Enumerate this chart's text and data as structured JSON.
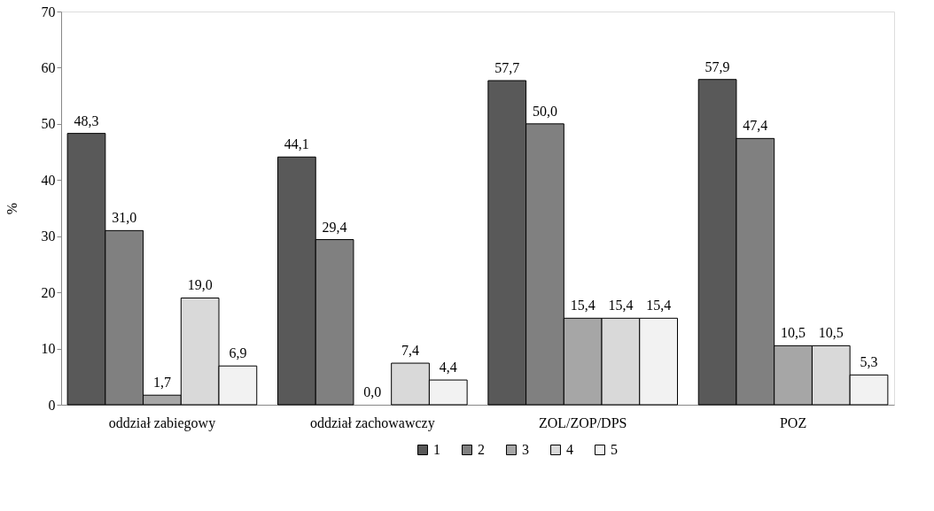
{
  "chart_data": {
    "type": "bar",
    "ylabel": "%",
    "categories": [
      "oddział zabiegowy",
      "oddział zachowawczy",
      "ZOL/ZOP/DPS",
      "POZ"
    ],
    "series": [
      {
        "name": "1",
        "color": "#595959",
        "values": [
          48.3,
          44.1,
          57.7,
          57.9
        ],
        "value_labels": [
          "48,3",
          "44,1",
          "57,7",
          "57,9"
        ]
      },
      {
        "name": "2",
        "color": "#808080",
        "values": [
          31.0,
          29.4,
          50.0,
          47.4
        ],
        "value_labels": [
          "31,0",
          "29,4",
          "50,0",
          "47,4"
        ]
      },
      {
        "name": "3",
        "color": "#a6a6a6",
        "values": [
          1.7,
          0.0,
          15.4,
          10.5
        ],
        "value_labels": [
          "1,7",
          "0,0",
          "15,4",
          "10,5"
        ]
      },
      {
        "name": "4",
        "color": "#d9d9d9",
        "values": [
          19.0,
          7.4,
          15.4,
          10.5
        ],
        "value_labels": [
          "19,0",
          "7,4",
          "15,4",
          "10,5"
        ]
      },
      {
        "name": "5",
        "color": "#f2f2f2",
        "values": [
          6.9,
          4.4,
          15.4,
          5.3
        ],
        "value_labels": [
          "6,9",
          "4,4",
          "15,4",
          "5,3"
        ]
      }
    ],
    "ylim": [
      0,
      70
    ],
    "yticks": [
      0,
      10,
      20,
      30,
      40,
      50,
      60,
      70
    ],
    "grid": false,
    "legend": "bottom"
  }
}
